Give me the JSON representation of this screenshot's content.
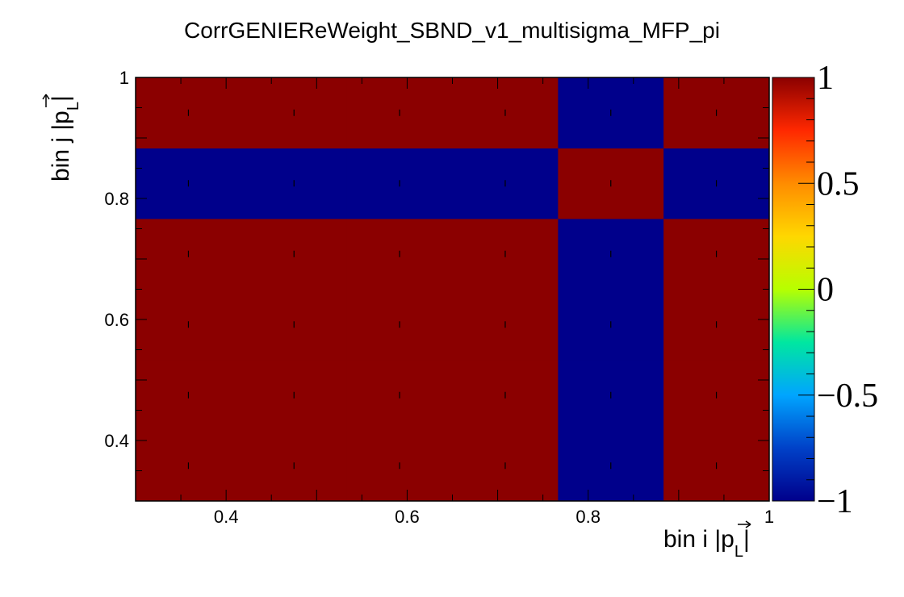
{
  "chart_data": {
    "type": "heatmap",
    "title": "CorrGENIEReWeight_SBND_v1_multisigma_MFP_pi",
    "xlabel": "bin i |p",
    "xlabel_sub": "L",
    "ylabel": "bin j |p",
    "ylabel_sub": "L",
    "xlim": [
      0.3,
      1.0
    ],
    "ylim": [
      0.3,
      1.0
    ],
    "zlim": [
      -1,
      1
    ],
    "x_ticks": [
      0.4,
      0.6,
      0.8,
      1
    ],
    "x_tick_labels": [
      "0.4",
      "0.6",
      "0.8",
      "1"
    ],
    "y_ticks": [
      0.4,
      0.6,
      0.8,
      1
    ],
    "y_tick_labels": [
      "0.4",
      "0.6",
      "0.8",
      "1"
    ],
    "z_ticks": [
      1,
      0.5,
      0,
      -0.5,
      -1
    ],
    "z_tick_labels": [
      "1",
      "0.5",
      "0",
      "−0.5",
      "−1"
    ],
    "x_bin_edges": [
      0.3,
      0.4167,
      0.5333,
      0.65,
      0.7667,
      0.8833,
      1.0
    ],
    "y_bin_edges": [
      0.3,
      0.4167,
      0.5333,
      0.65,
      0.7667,
      0.8833,
      1.0
    ],
    "values": [
      [
        1,
        1,
        1,
        1,
        -1,
        1
      ],
      [
        1,
        1,
        1,
        1,
        -1,
        1
      ],
      [
        1,
        1,
        1,
        1,
        -1,
        1
      ],
      [
        1,
        1,
        1,
        1,
        -1,
        1
      ],
      [
        -1,
        -1,
        -1,
        -1,
        1,
        -1
      ],
      [
        1,
        1,
        1,
        1,
        -1,
        1
      ]
    ],
    "colormap": [
      "#00008b",
      "#0041c8",
      "#00a5ff",
      "#00e7a0",
      "#b7ff00",
      "#ffd700",
      "#ff8c00",
      "#ff2800",
      "#8b0000"
    ],
    "grid": false
  }
}
